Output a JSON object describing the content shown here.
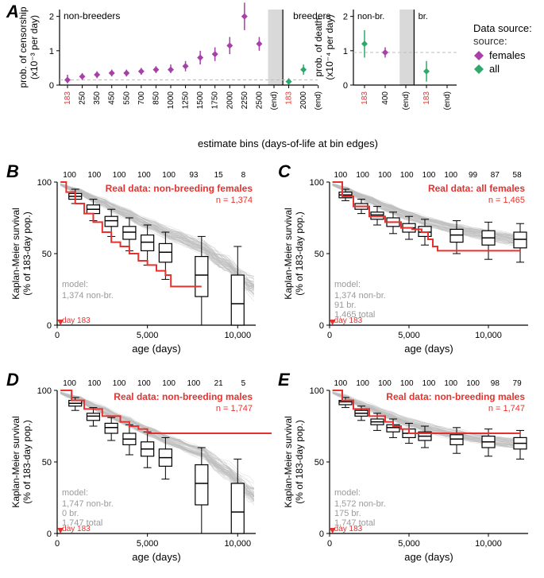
{
  "colors": {
    "females": "#a93fa9",
    "all": "#2fa86b",
    "red": "#e5322e",
    "gray_fill": "#d9d9d9",
    "axis": "#000000",
    "model_gray": "#bdbdbd",
    "box_stroke": "#000000",
    "text_gray": "#9a9a9a",
    "dash_gray": "#bdbdbd"
  },
  "legend": {
    "title": "Data source:",
    "items": [
      {
        "label": "females",
        "color": "#a93fa9"
      },
      {
        "label": "all",
        "color": "#2fa86b"
      }
    ]
  },
  "panelA": {
    "label": "A",
    "left": {
      "ylabel1": "prob. of censorship",
      "ylabel2": "(x10⁻³ per day)",
      "yticks": [
        0,
        1,
        2
      ],
      "nonbreeders_text": "non-breeders",
      "breeders_text": "breeders",
      "xticks": [
        "183",
        "250",
        "350",
        "450",
        "550",
        "700",
        "850",
        "1000",
        "1250",
        "1500",
        "1750",
        "2000",
        "2250",
        "2500",
        "(end)",
        "183",
        "2000",
        "(end)"
      ],
      "xtick_red": [
        true,
        false,
        false,
        false,
        false,
        false,
        false,
        false,
        false,
        false,
        false,
        false,
        false,
        false,
        false,
        true,
        false,
        false
      ],
      "points_nb": [
        {
          "i": 0,
          "y": 0.15,
          "lo": 0.05,
          "hi": 0.3
        },
        {
          "i": 1,
          "y": 0.25,
          "lo": 0.15,
          "hi": 0.35
        },
        {
          "i": 2,
          "y": 0.3,
          "lo": 0.2,
          "hi": 0.4
        },
        {
          "i": 3,
          "y": 0.35,
          "lo": 0.25,
          "hi": 0.45
        },
        {
          "i": 4,
          "y": 0.35,
          "lo": 0.25,
          "hi": 0.45
        },
        {
          "i": 5,
          "y": 0.4,
          "lo": 0.3,
          "hi": 0.5
        },
        {
          "i": 6,
          "y": 0.45,
          "lo": 0.35,
          "hi": 0.55
        },
        {
          "i": 7,
          "y": 0.45,
          "lo": 0.35,
          "hi": 0.6
        },
        {
          "i": 8,
          "y": 0.55,
          "lo": 0.4,
          "hi": 0.7
        },
        {
          "i": 9,
          "y": 0.8,
          "lo": 0.6,
          "hi": 1.0
        },
        {
          "i": 10,
          "y": 0.9,
          "lo": 0.7,
          "hi": 1.1
        },
        {
          "i": 11,
          "y": 1.15,
          "lo": 0.9,
          "hi": 1.4
        },
        {
          "i": 12,
          "y": 2.0,
          "lo": 1.6,
          "hi": 2.4
        },
        {
          "i": 13,
          "y": 1.2,
          "lo": 1.0,
          "hi": 1.4
        }
      ],
      "points_br": [
        {
          "i": 15,
          "y": 0.1,
          "lo": 0.02,
          "hi": 0.2
        },
        {
          "i": 16,
          "y": 0.45,
          "lo": 0.3,
          "hi": 0.6
        }
      ],
      "dash_y": 0.15
    },
    "right": {
      "ylabel1": "prob. of death",
      "ylabel2": "(x10⁻⁴ per day)",
      "yticks": [
        0,
        1,
        2
      ],
      "nonbr_text": "non-br.",
      "br_text": "br.",
      "xticks": [
        "183",
        "400",
        "(end)",
        "183",
        "(end)"
      ],
      "xtick_red": [
        true,
        false,
        false,
        true,
        false
      ],
      "points_nb": [
        {
          "i": 0,
          "y": 1.2,
          "lo": 0.8,
          "hi": 1.6,
          "color": "#2fa86b"
        },
        {
          "i": 1,
          "y": 0.95,
          "lo": 0.8,
          "hi": 1.1,
          "color": "#a93fa9"
        }
      ],
      "points_br": [
        {
          "i": 3,
          "y": 0.4,
          "lo": 0.1,
          "hi": 0.7,
          "color": "#2fa86b"
        }
      ],
      "dash_y": 0.95
    },
    "xlabel": "estimate bins (days-of-life at bin edges)"
  },
  "panelB": {
    "label": "B",
    "title": "Real data: non-breeding females",
    "n_text": "n = 1,374",
    "model_lines": [
      "1,374 non-br."
    ],
    "top_counts": [
      "100",
      "100",
      "100",
      "100",
      "100",
      "93",
      "15",
      "8"
    ],
    "day183": "day 183",
    "ylabel1": "Kaplan-Meier survival",
    "ylabel2": "(% of 183-day pop.)",
    "xlabel": "age (days)",
    "xticks": [
      0,
      5000,
      10000
    ],
    "yticks": [
      0,
      50,
      100
    ],
    "red_curve": [
      [
        183,
        100
      ],
      [
        500,
        93
      ],
      [
        1000,
        85
      ],
      [
        1500,
        78
      ],
      [
        2000,
        72
      ],
      [
        2500,
        65
      ],
      [
        3000,
        58
      ],
      [
        3500,
        55
      ],
      [
        4000,
        50
      ],
      [
        4500,
        45
      ],
      [
        5000,
        42
      ],
      [
        5500,
        38
      ],
      [
        6000,
        35
      ],
      [
        6300,
        27
      ],
      [
        8000,
        27
      ]
    ],
    "boxes": [
      {
        "x": 1000,
        "lo": 85,
        "q1": 88,
        "med": 90,
        "q3": 92,
        "hi": 95
      },
      {
        "x": 2000,
        "lo": 73,
        "q1": 78,
        "med": 81,
        "q3": 84,
        "hi": 88
      },
      {
        "x": 3000,
        "lo": 62,
        "q1": 69,
        "med": 73,
        "q3": 76,
        "hi": 81
      },
      {
        "x": 4000,
        "lo": 52,
        "q1": 60,
        "med": 65,
        "q3": 69,
        "hi": 75
      },
      {
        "x": 5000,
        "lo": 42,
        "q1": 52,
        "med": 58,
        "q3": 63,
        "hi": 70
      },
      {
        "x": 6000,
        "lo": 32,
        "q1": 44,
        "med": 51,
        "q3": 57,
        "hi": 65
      },
      {
        "x": 8000,
        "lo": 0,
        "q1": 20,
        "med": 35,
        "q3": 48,
        "hi": 62
      },
      {
        "x": 10000,
        "lo": 0,
        "q1": 0,
        "med": 15,
        "q3": 35,
        "hi": 55
      }
    ]
  },
  "panelC": {
    "label": "C",
    "title": "Real data: all females",
    "n_text": "n = 1,465",
    "model_lines": [
      "1,374 non-br.",
      "91 br.",
      "1,465 total"
    ],
    "top_counts": [
      "100",
      "100",
      "100",
      "100",
      "100",
      "100",
      "99",
      "87",
      "58"
    ],
    "day183": "day 183",
    "ylabel1": "Kaplan-Meier survival",
    "ylabel2": "(% of 183-day pop.)",
    "xlabel": "age (days)",
    "xticks": [
      0,
      5000,
      10000
    ],
    "yticks": [
      0,
      50,
      100
    ],
    "red_curve": [
      [
        183,
        100
      ],
      [
        800,
        90
      ],
      [
        1500,
        83
      ],
      [
        2500,
        76
      ],
      [
        3500,
        72
      ],
      [
        4500,
        68
      ],
      [
        5200,
        67
      ],
      [
        5800,
        65
      ],
      [
        6200,
        60
      ],
      [
        6500,
        55
      ],
      [
        6800,
        52
      ],
      [
        12000,
        52
      ]
    ],
    "boxes": [
      {
        "x": 1000,
        "lo": 87,
        "q1": 89,
        "med": 91,
        "q3": 93,
        "hi": 95
      },
      {
        "x": 2000,
        "lo": 78,
        "q1": 81,
        "med": 83,
        "q3": 85,
        "hi": 88
      },
      {
        "x": 3000,
        "lo": 70,
        "q1": 74,
        "med": 77,
        "q3": 79,
        "hi": 83
      },
      {
        "x": 4000,
        "lo": 64,
        "q1": 69,
        "med": 72,
        "q3": 75,
        "hi": 79
      },
      {
        "x": 5000,
        "lo": 60,
        "q1": 65,
        "med": 68,
        "q3": 71,
        "hi": 76
      },
      {
        "x": 6000,
        "lo": 56,
        "q1": 62,
        "med": 65,
        "q3": 69,
        "hi": 74
      },
      {
        "x": 8000,
        "lo": 50,
        "q1": 58,
        "med": 63,
        "q3": 67,
        "hi": 73
      },
      {
        "x": 10000,
        "lo": 46,
        "q1": 56,
        "med": 61,
        "q3": 66,
        "hi": 72
      },
      {
        "x": 12000,
        "lo": 44,
        "q1": 54,
        "med": 60,
        "q3": 65,
        "hi": 71
      }
    ]
  },
  "panelD": {
    "label": "D",
    "title": "Real data: non-breeding males",
    "n_text": "n = 1,747",
    "model_lines": [
      "1,747 non-br.",
      "0 br.",
      "1,747 total"
    ],
    "top_counts": [
      "100",
      "100",
      "100",
      "100",
      "100",
      "100",
      "21",
      "5"
    ],
    "day183": "day 183",
    "ylabel1": "Kaplan-Meier survival",
    "ylabel2": "(% of 183-day pop.)",
    "xlabel": "age (days)",
    "xticks": [
      0,
      5000,
      10000
    ],
    "yticks": [
      0,
      50,
      100
    ],
    "red_curve": [
      [
        183,
        100
      ],
      [
        800,
        93
      ],
      [
        1500,
        87
      ],
      [
        2500,
        82
      ],
      [
        3500,
        78
      ],
      [
        4000,
        75
      ],
      [
        4500,
        73
      ],
      [
        5000,
        70
      ],
      [
        12000,
        70
      ]
    ],
    "boxes": [
      {
        "x": 1000,
        "lo": 86,
        "q1": 89,
        "med": 91,
        "q3": 93,
        "hi": 95
      },
      {
        "x": 2000,
        "lo": 75,
        "q1": 79,
        "med": 82,
        "q3": 84,
        "hi": 88
      },
      {
        "x": 3000,
        "lo": 65,
        "q1": 70,
        "med": 74,
        "q3": 77,
        "hi": 81
      },
      {
        "x": 4000,
        "lo": 55,
        "q1": 62,
        "med": 66,
        "q3": 70,
        "hi": 76
      },
      {
        "x": 5000,
        "lo": 46,
        "q1": 54,
        "med": 59,
        "q3": 64,
        "hi": 71
      },
      {
        "x": 6000,
        "lo": 38,
        "q1": 47,
        "med": 53,
        "q3": 59,
        "hi": 67
      },
      {
        "x": 8000,
        "lo": 0,
        "q1": 20,
        "med": 35,
        "q3": 48,
        "hi": 60
      },
      {
        "x": 10000,
        "lo": 0,
        "q1": 0,
        "med": 15,
        "q3": 35,
        "hi": 52
      }
    ]
  },
  "panelE": {
    "label": "E",
    "title": "Real data: non-breeding males",
    "n_text": "n = 1,747",
    "model_lines": [
      "1,572 non-br.",
      "175 br.",
      "1,747 total"
    ],
    "top_counts": [
      "100",
      "100",
      "100",
      "100",
      "100",
      "100",
      "100",
      "98",
      "79"
    ],
    "day183": "day 183",
    "ylabel1": "Kaplan-Meier survival",
    "ylabel2": "(% of 183-day pop.)",
    "xlabel": "age (days)",
    "xticks": [
      0,
      5000,
      10000
    ],
    "yticks": [
      0,
      50,
      100
    ],
    "red_curve": [
      [
        183,
        100
      ],
      [
        800,
        93
      ],
      [
        1500,
        87
      ],
      [
        2500,
        82
      ],
      [
        3500,
        78
      ],
      [
        4000,
        75
      ],
      [
        4500,
        73
      ],
      [
        5000,
        70
      ],
      [
        12000,
        70
      ]
    ],
    "boxes": [
      {
        "x": 1000,
        "lo": 88,
        "q1": 90,
        "med": 92,
        "q3": 93,
        "hi": 95
      },
      {
        "x": 2000,
        "lo": 79,
        "q1": 82,
        "med": 84,
        "q3": 86,
        "hi": 89
      },
      {
        "x": 3000,
        "lo": 72,
        "q1": 76,
        "med": 78,
        "q3": 80,
        "hi": 84
      },
      {
        "x": 4000,
        "lo": 67,
        "q1": 71,
        "med": 74,
        "q3": 76,
        "hi": 80
      },
      {
        "x": 5000,
        "lo": 63,
        "q1": 67,
        "med": 70,
        "q3": 73,
        "hi": 77
      },
      {
        "x": 6000,
        "lo": 60,
        "q1": 65,
        "med": 68,
        "q3": 71,
        "hi": 75
      },
      {
        "x": 8000,
        "lo": 56,
        "q1": 62,
        "med": 66,
        "q3": 69,
        "hi": 74
      },
      {
        "x": 10000,
        "lo": 54,
        "q1": 60,
        "med": 64,
        "q3": 68,
        "hi": 73
      },
      {
        "x": 12000,
        "lo": 52,
        "q1": 59,
        "med": 63,
        "q3": 67,
        "hi": 72
      }
    ]
  },
  "model_text": "model:"
}
